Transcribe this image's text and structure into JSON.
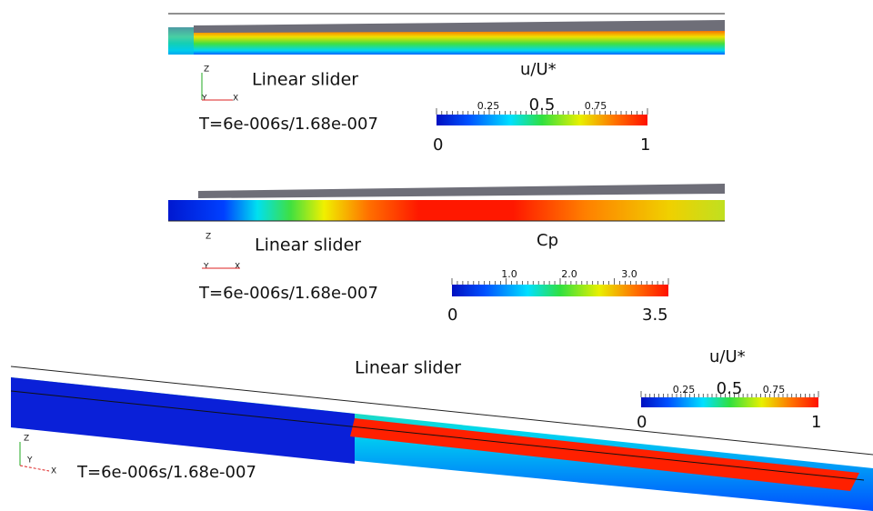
{
  "panels": [
    {
      "title": "Linear slider",
      "time": "T=6e-006s/1.68e-007",
      "axes": {
        "z": "Z",
        "y": "Y",
        "x": "X"
      },
      "colorbar": {
        "title": "u/U*",
        "ticks": [
          "0.25",
          "0.5",
          "0.75"
        ],
        "min": "0",
        "max": "1"
      }
    },
    {
      "title": "Linear slider",
      "time": "T=6e-006s/1.68e-007",
      "axes": {
        "z": "Z",
        "y": "Y",
        "x": "X"
      },
      "colorbar": {
        "title": "Cp",
        "ticks": [
          "1.0",
          "2.0",
          "3.0"
        ],
        "min": "0",
        "max": "3.5"
      }
    },
    {
      "title": "Linear slider",
      "time": "T=6e-006s/1.68e-007",
      "axes": {
        "z": "Z",
        "y": "Y",
        "x": "X"
      },
      "colorbar": {
        "title": "u/U*",
        "ticks": [
          "0.25",
          "0.5",
          "0.75"
        ],
        "min": "0",
        "max": "1"
      }
    }
  ]
}
